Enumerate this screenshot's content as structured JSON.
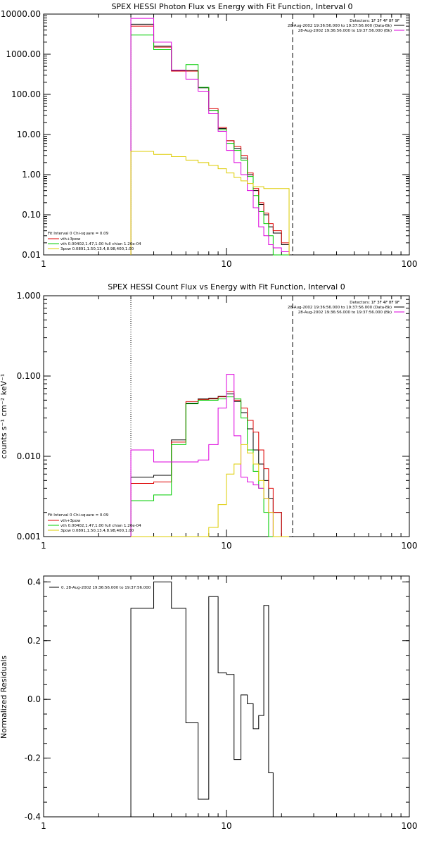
{
  "chart_data": [
    {
      "type": "line",
      "title": "SPEX HESSI Photon Flux vs Energy with Fit Function, Interval 0",
      "xscale": "log",
      "yscale": "log",
      "xlim": [
        1,
        100
      ],
      "ylim": [
        0.01,
        10000
      ],
      "xticks": [
        "1",
        "10",
        "100"
      ],
      "yticks": [
        "0.01",
        "0.10",
        "1.00",
        "10.00",
        "100.00",
        "1000.00",
        "10000.00"
      ],
      "edges": [
        3,
        4,
        5,
        6,
        7,
        8,
        9,
        10,
        11,
        12,
        13,
        14,
        15,
        16,
        17,
        18,
        20,
        22,
        24
      ],
      "vlines": [
        {
          "x": 3,
          "style": "dotted"
        },
        {
          "x": 23,
          "style": "dashed"
        }
      ],
      "legend_right": [
        "Detectors: 1F 3F 4F 8F 9F",
        "28-Aug-2002 19:36:56.000 to 19:37:56.000 (Data-Bk)",
        "28-Aug-2002 19:36:56.000 to 19:37:56.000 (Bk)"
      ],
      "legend_left": [
        "Fit Interval 0   Chi-square = 0.09",
        "vth+3pow",
        "vth 0.00402,1.47,1.00  full chian 1.26e-04",
        "3pow 0.0891,1.50,13.4,8.98,400,1.00"
      ],
      "series": [
        {
          "color": "#000000",
          "values": [
            5600,
            1600,
            390,
            390,
            145,
            40,
            14,
            7,
            4.5,
            2.6,
            1.0,
            0.4,
            0.18,
            0.1,
            0.05,
            0.035,
            0.018
          ]
        },
        {
          "color": "#dd0000",
          "values": [
            5000,
            1500,
            380,
            380,
            150,
            44,
            15,
            7,
            5.0,
            3.0,
            1.1,
            0.45,
            0.2,
            0.11,
            0.06,
            0.04,
            0.02
          ]
        },
        {
          "color": "#00cc00",
          "values": [
            3000,
            1300,
            400,
            550,
            150,
            40,
            13,
            6,
            4.0,
            2.3,
            0.9,
            0.3,
            0.12,
            0.06,
            0.03,
            0.01,
            0.01
          ]
        },
        {
          "color": "#dd00dd",
          "values": [
            7800,
            2000,
            400,
            240,
            120,
            33,
            12,
            4,
            2.0,
            1.0,
            0.4,
            0.15,
            0.05,
            0.03,
            0.018,
            0.015,
            0.012
          ]
        },
        {
          "color": "#ddcc00",
          "values": [
            3.8,
            3.2,
            2.8,
            2.3,
            2.0,
            1.7,
            1.4,
            1.1,
            0.85,
            0.7,
            0.6,
            0.5,
            0.5,
            0.45,
            0.45,
            0.45,
            0.45
          ]
        }
      ]
    },
    {
      "type": "line",
      "title": "SPEX HESSI Count Flux vs Energy with Fit Function, Interval 0",
      "ylabel": "counts s⁻¹ cm⁻² keV⁻¹",
      "xscale": "log",
      "yscale": "log",
      "xlim": [
        1,
        100
      ],
      "ylim": [
        0.001,
        1
      ],
      "xticks": [
        "1",
        "10",
        "100"
      ],
      "yticks": [
        "0.001",
        "0.010",
        "0.100",
        "1.000"
      ],
      "edges": [
        3,
        4,
        5,
        6,
        7,
        8,
        9,
        10,
        11,
        12,
        13,
        14,
        15,
        16,
        17,
        18,
        20,
        22,
        24
      ],
      "vlines": [
        {
          "x": 3,
          "style": "dotted"
        },
        {
          "x": 23,
          "style": "dashed"
        }
      ],
      "legend_right": [
        "Detectors: 1F 3F 4F 8F 9F",
        "28-Aug-2002 19:36:56.000 to 19:37:56.000 (Data-Bk)",
        "28-Aug-2002 19:36:56.000 to 19:37:56.000 (Bk)"
      ],
      "legend_left": [
        "Fit Interval 0   Chi-square = 0.09",
        "vth+3pow",
        "vth 0.00402,1.47,1.00  full chian 1.26e-04",
        "3pow 0.0891,1.50,13.4,8.98,400,1.00"
      ],
      "series": [
        {
          "color": "#000000",
          "values": [
            0.0055,
            0.0058,
            0.016,
            0.046,
            0.052,
            0.053,
            0.056,
            0.06,
            0.048,
            0.035,
            0.022,
            0.012,
            0.008,
            0.005,
            0.003,
            0.002,
            0.001
          ]
        },
        {
          "color": "#dd0000",
          "values": [
            0.0046,
            0.0048,
            0.015,
            0.048,
            0.051,
            0.052,
            0.055,
            0.064,
            0.05,
            0.04,
            0.028,
            0.02,
            0.012,
            0.007,
            0.004,
            0.002,
            0.001
          ]
        },
        {
          "color": "#00cc00",
          "values": [
            0.0028,
            0.0033,
            0.014,
            0.045,
            0.05,
            0.05,
            0.052,
            0.055,
            0.052,
            0.03,
            0.012,
            0.0065,
            0.004,
            0.002,
            0.001,
            0.001,
            0.001
          ]
        },
        {
          "color": "#dd00dd",
          "values": [
            0.012,
            0.0085,
            0.0085,
            0.0085,
            0.009,
            0.014,
            0.04,
            0.105,
            0.018,
            0.0055,
            0.0048,
            0.0044,
            0.004,
            0.003,
            0.002,
            0.001,
            0.001
          ]
        },
        {
          "color": "#ddcc00",
          "values": [
            0.001,
            0.001,
            0.001,
            0.001,
            0.001,
            0.0013,
            0.0025,
            0.006,
            0.008,
            0.014,
            0.011,
            0.008,
            0.005,
            0.003,
            0.002,
            0.001,
            0.001
          ]
        }
      ]
    },
    {
      "type": "line",
      "ylabel": "Normalized Residuals",
      "xscale": "log",
      "xlim": [
        1,
        100
      ],
      "ylim": [
        -0.4,
        0.42
      ],
      "xticks": [
        "1",
        "10",
        "100"
      ],
      "yticks": [
        "0.4",
        "0.2",
        "0.0",
        "-0.2",
        "-0.4"
      ],
      "legend": [
        "0. 28-Aug-2002 19:36:56.000 to 19:37:56.000"
      ],
      "edges": [
        3,
        3.5,
        4,
        4.5,
        5,
        5.5,
        6,
        7,
        8,
        9,
        10,
        11,
        12,
        13,
        14,
        15,
        16,
        17,
        18,
        20,
        22,
        24
      ],
      "series": [
        {
          "color": "#000000",
          "values": [
            0.31,
            0.31,
            0.4,
            0.4,
            0.31,
            0.31,
            -0.08,
            -0.34,
            0.35,
            0.09,
            0.085,
            -0.205,
            0.015,
            -0.015,
            -0.1,
            -0.055,
            0.32,
            -0.25,
            -0.4,
            -0.4,
            -0.4
          ]
        }
      ]
    }
  ]
}
